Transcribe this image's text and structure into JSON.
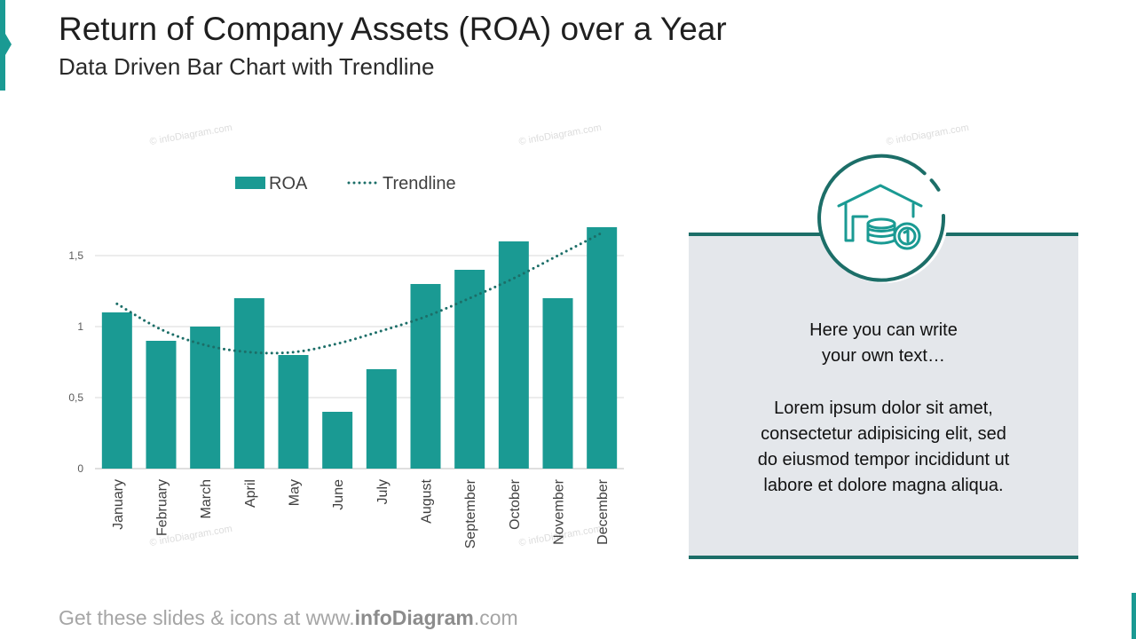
{
  "header": {
    "title": "Return of Company Assets (ROA) over a Year",
    "subtitle": "Data Driven Bar Chart with Trendline"
  },
  "watermark": "© infoDiagram.com",
  "colors": {
    "accent": "#1a9a93",
    "trendline": "#1c6e68",
    "panel": "#e4e7eb"
  },
  "chart_data": {
    "type": "bar",
    "categories": [
      "January",
      "February",
      "March",
      "April",
      "May",
      "June",
      "July",
      "August",
      "September",
      "October",
      "November",
      "December"
    ],
    "series": [
      {
        "name": "ROA",
        "values": [
          1.1,
          0.9,
          1.0,
          1.2,
          0.8,
          0.4,
          0.7,
          1.3,
          1.4,
          1.6,
          1.2,
          1.7
        ]
      },
      {
        "name": "Trendline",
        "type": "line",
        "style": "dotted",
        "values": [
          1.16,
          0.98,
          0.87,
          0.82,
          0.82,
          0.88,
          0.97,
          1.07,
          1.2,
          1.34,
          1.5,
          1.66
        ]
      }
    ],
    "yticks": [
      0,
      0.5,
      1,
      1.5
    ],
    "ytick_labels": [
      "0",
      "0,5",
      "1",
      "1,5"
    ],
    "ylim": [
      0,
      1.7
    ],
    "grid": true,
    "legend": "top"
  },
  "panel": {
    "icon": "house-coins-icon",
    "heading_lines": [
      "Here you can write",
      "your own text…"
    ],
    "body_lines": [
      "Lorem ipsum dolor sit amet,",
      "consectetur adipisicing elit, sed",
      "do eiusmod tempor incididunt ut",
      "labore et dolore magna aliqua."
    ]
  },
  "footer": {
    "prefix": "Get these slides & icons at www.",
    "brand": "infoDiagram",
    "suffix": ".com"
  }
}
